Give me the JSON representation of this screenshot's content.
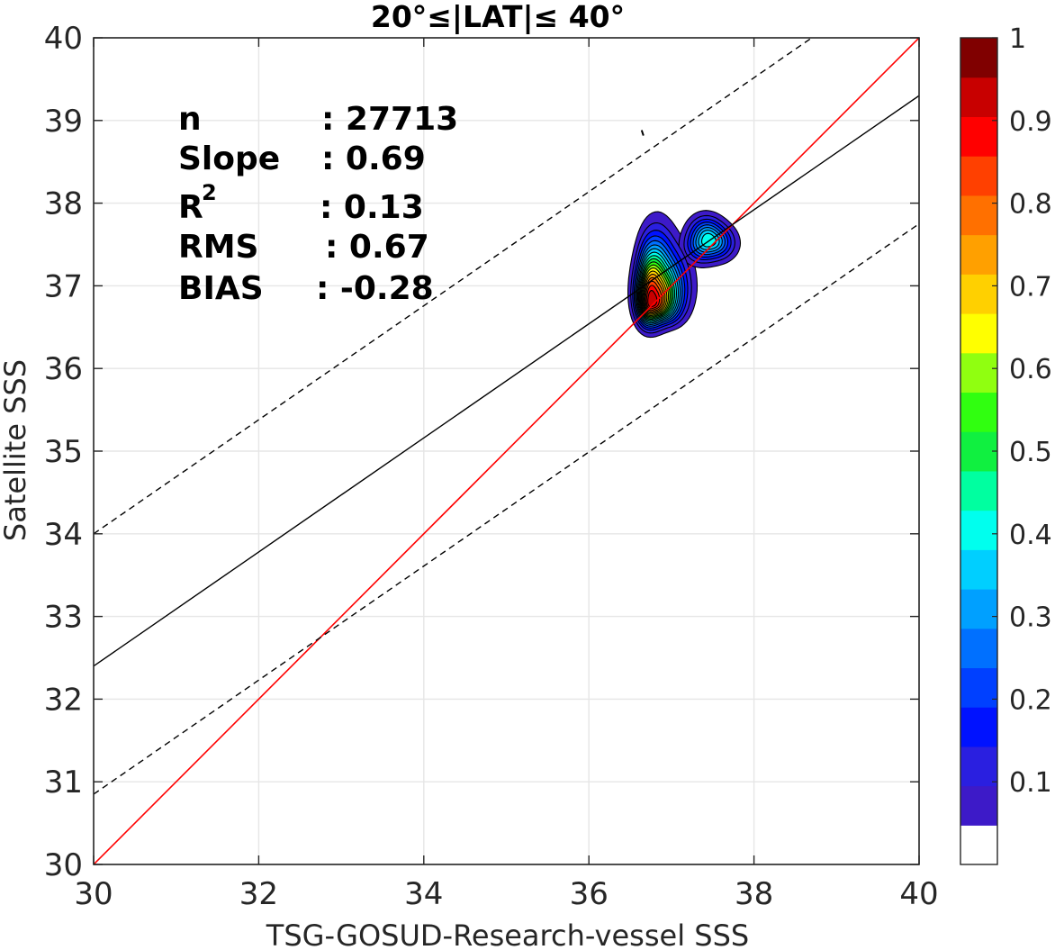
{
  "chart_data": {
    "type": "contour-scatter",
    "title": "20°≤|LAT|≤ 40°",
    "xlabel": "TSG-GOSUD-Research-vessel SSS",
    "ylabel": "Satellite SSS",
    "xlim": [
      30,
      40
    ],
    "ylim": [
      30,
      40
    ],
    "xticks": [
      "30",
      "32",
      "34",
      "36",
      "38",
      "40"
    ],
    "yticks": [
      "30",
      "31",
      "32",
      "33",
      "34",
      "35",
      "36",
      "37",
      "38",
      "39",
      "40"
    ],
    "grid": true,
    "stats": {
      "n_label": "n",
      "n_value": ": 27713",
      "slope_label": "Slope",
      "slope_value": ": 0.69",
      "r2_label": "R",
      "r2_sup": "2",
      "r2_value": ": 0.13",
      "rms_label": "RMS",
      "rms_value": ": 0.67",
      "bias_label": "BIAS",
      "bias_value": ": -0.28"
    },
    "lines": {
      "identity": {
        "color": "#ff0000",
        "slope": 1,
        "intercept": 0
      },
      "fit": {
        "color": "#000000",
        "points": [
          [
            30,
            32.4
          ],
          [
            40,
            39.3
          ]
        ]
      },
      "upper_bound": {
        "color": "#000000",
        "style": "dashed",
        "points": [
          [
            30,
            34.0
          ],
          [
            38.7,
            40.0
          ]
        ]
      },
      "lower_bound": {
        "color": "#000000",
        "style": "dashed",
        "points": [
          [
            30,
            30.85
          ],
          [
            40,
            37.75
          ]
        ]
      }
    },
    "density_peak": {
      "x": 36.75,
      "y": 36.8,
      "value": 1
    },
    "secondary_peak": {
      "x": 37.45,
      "y": 37.55
    },
    "stray_mark": {
      "x": 36.65,
      "y": 38.85
    },
    "colorbar": {
      "tick_labels": [
        "0.1",
        "0.2",
        "0.3",
        "0.4",
        "0.5",
        "0.6",
        "0.7",
        "0.8",
        "0.9",
        "1"
      ],
      "tick_values": [
        0.1,
        0.2,
        0.3,
        0.4,
        0.5,
        0.6,
        0.7,
        0.8,
        0.9,
        1.0
      ],
      "range": [
        0,
        1
      ],
      "levels": 20,
      "colors": [
        "#ffffff",
        "#5a0faa",
        "#3d1ac8",
        "#2a1fe0",
        "#0012ff",
        "#0040ff",
        "#0070ff",
        "#00a0ff",
        "#00cfff",
        "#00ffee",
        "#00ffa0",
        "#10f040",
        "#30ff10",
        "#90ff10",
        "#ffff00",
        "#ffd000",
        "#ffa000",
        "#ff7000",
        "#ff4000",
        "#ff0000",
        "#c80000",
        "#800000"
      ]
    }
  }
}
